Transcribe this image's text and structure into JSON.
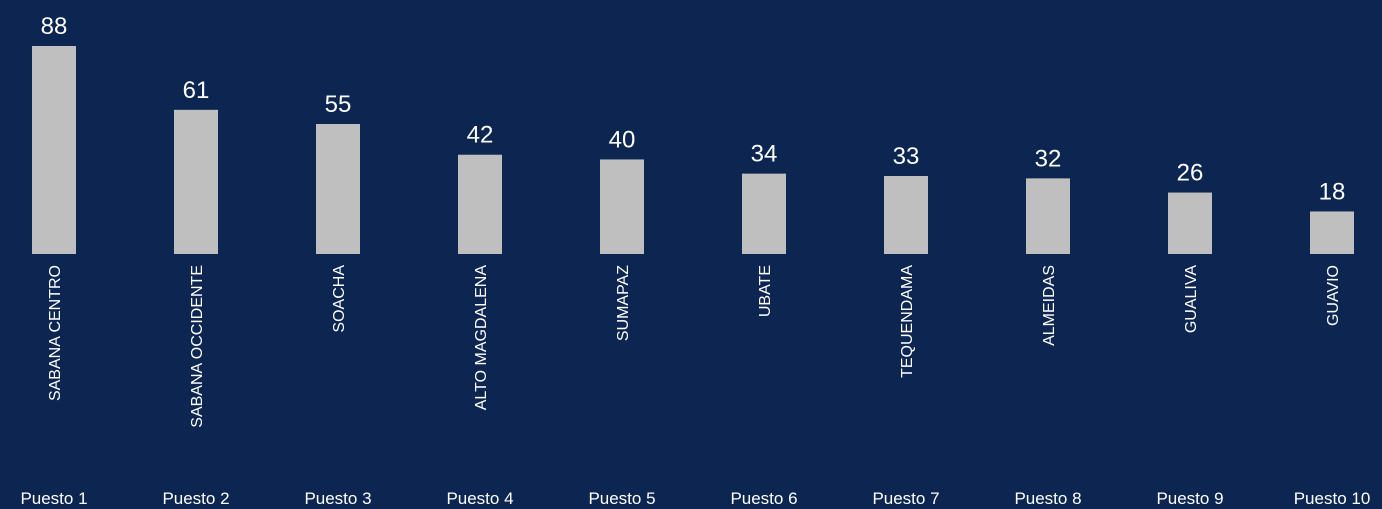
{
  "chart_data": {
    "type": "bar",
    "categories": [
      "SABANA CENTRO",
      "SABANA OCCIDENTE",
      "SOACHA",
      "ALTO MAGDALENA",
      "SUMAPAZ",
      "UBATE",
      "TEQUENDAMA",
      "ALMEIDAS",
      "GUALIVA",
      "GUAVIO"
    ],
    "ranks": [
      "Puesto 1",
      "Puesto 2",
      "Puesto 3",
      "Puesto 4",
      "Puesto 5",
      "Puesto 6",
      "Puesto 7",
      "Puesto 8",
      "Puesto 9",
      "Puesto 10"
    ],
    "values": [
      88,
      61,
      55,
      42,
      40,
      34,
      33,
      32,
      26,
      18
    ],
    "color": "#bfbfbf"
  }
}
